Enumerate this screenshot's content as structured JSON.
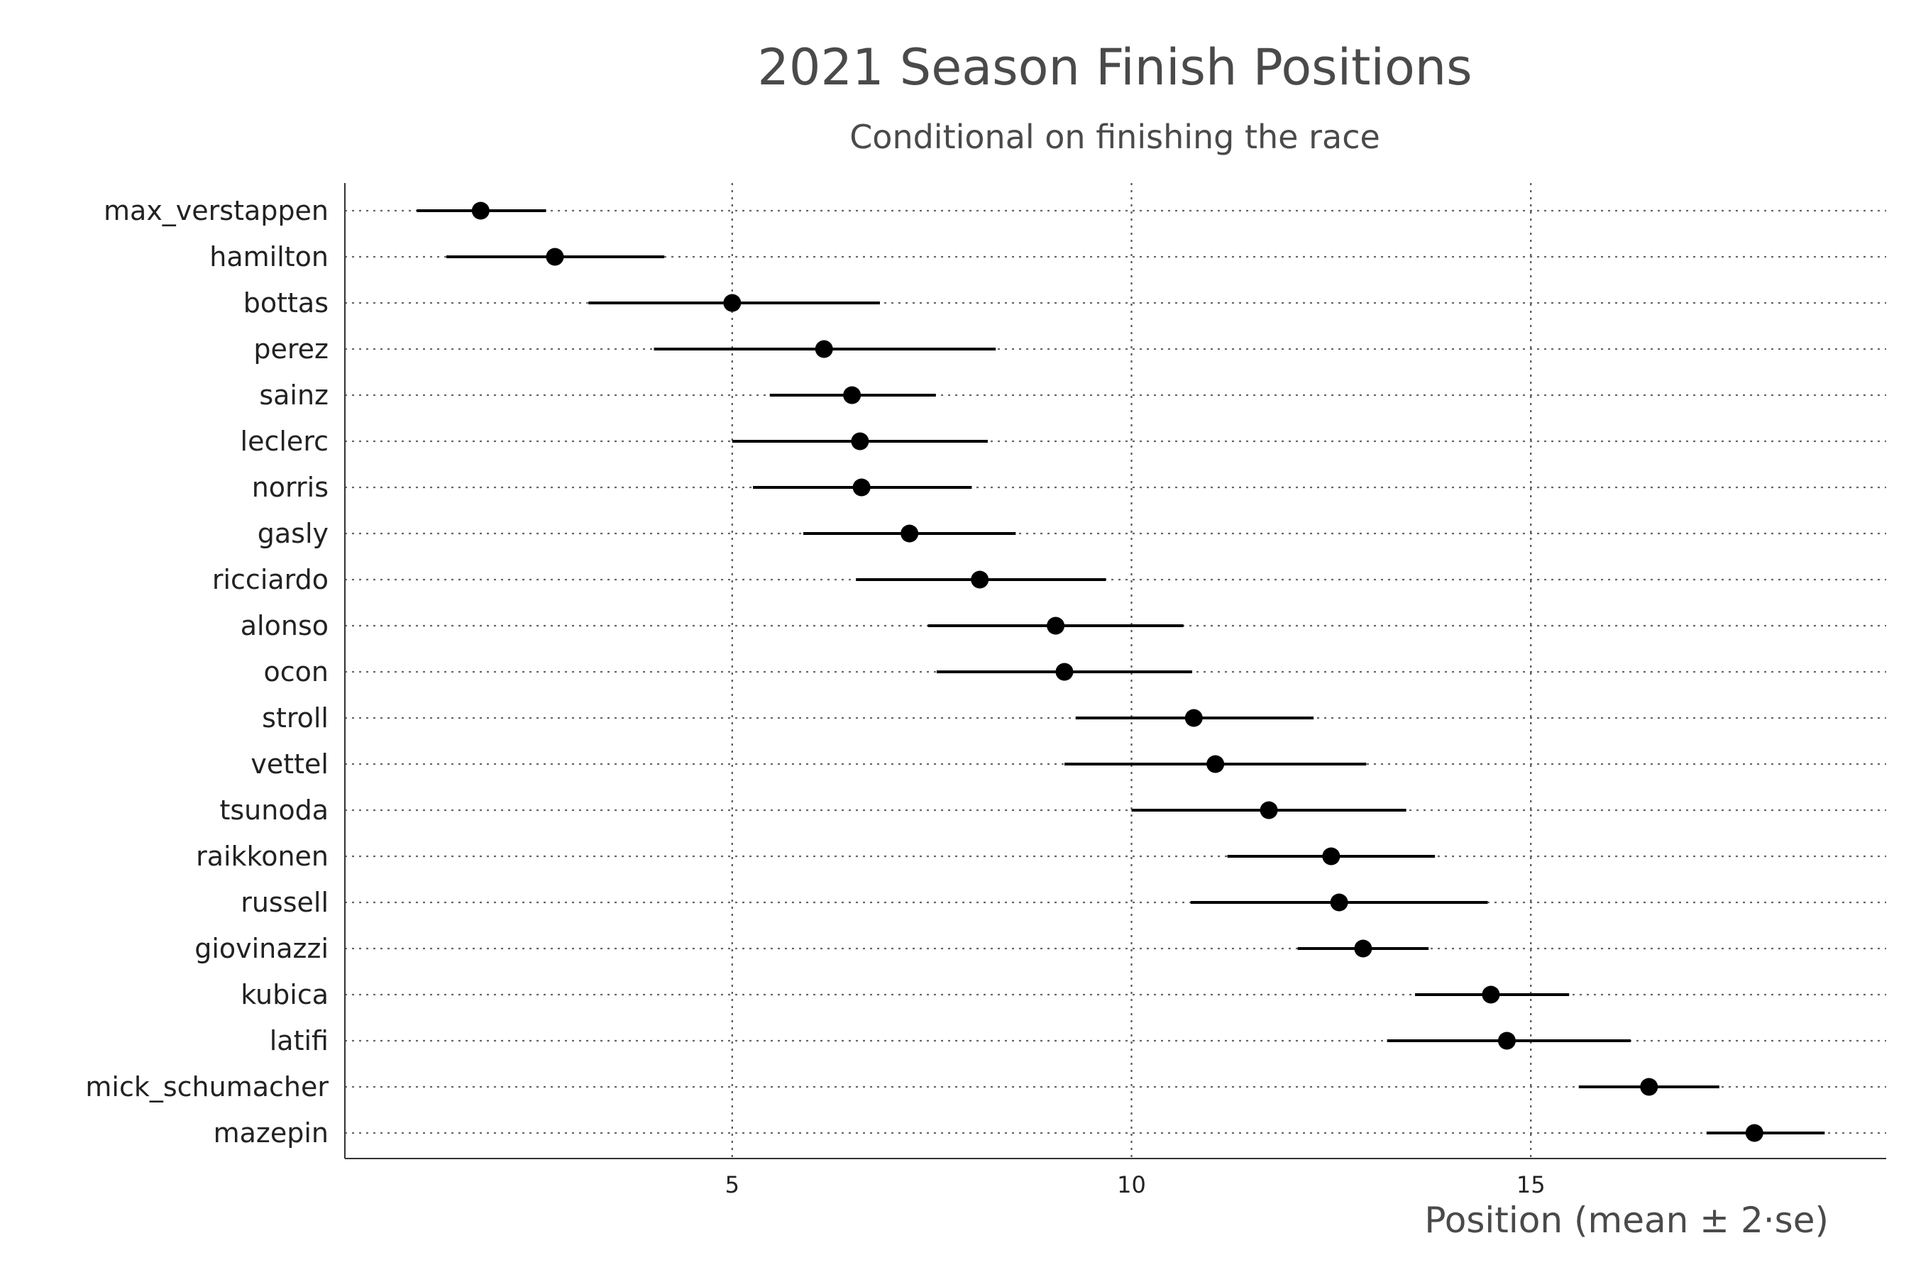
{
  "chart_data": {
    "type": "scatter",
    "title": "2021 Season Finish Positions",
    "subtitle": "Conditional on finishing the race",
    "xlabel": "Position (mean ± 2·se)",
    "ylabel": "",
    "xlim": [
      0.15,
      19.45
    ],
    "xticks": [
      5,
      10,
      15
    ],
    "grid": true,
    "drivers": [
      "max_verstappen",
      "hamilton",
      "bottas",
      "perez",
      "sainz",
      "leclerc",
      "norris",
      "gasly",
      "ricciardo",
      "alonso",
      "ocon",
      "stroll",
      "vettel",
      "tsunoda",
      "raikkonen",
      "russell",
      "giovinazzi",
      "kubica",
      "latifi",
      "mick_schumacher",
      "mazepin"
    ],
    "mean": [
      1.85,
      2.78,
      5.0,
      6.15,
      6.5,
      6.6,
      6.62,
      7.22,
      8.1,
      9.05,
      9.16,
      10.78,
      11.05,
      11.72,
      12.5,
      12.6,
      12.9,
      14.5,
      14.7,
      16.48,
      17.8
    ],
    "lower": [
      1.05,
      1.42,
      3.2,
      4.02,
      5.47,
      5.0,
      5.26,
      5.89,
      6.55,
      7.45,
      7.56,
      9.3,
      9.16,
      10.0,
      11.2,
      10.74,
      12.08,
      13.55,
      13.2,
      15.6,
      17.2
    ],
    "upper": [
      2.67,
      4.15,
      6.85,
      8.3,
      7.55,
      8.2,
      8.0,
      8.55,
      9.68,
      10.65,
      10.76,
      12.28,
      12.94,
      13.44,
      13.8,
      14.46,
      13.72,
      15.48,
      16.25,
      17.36,
      18.68
    ]
  }
}
